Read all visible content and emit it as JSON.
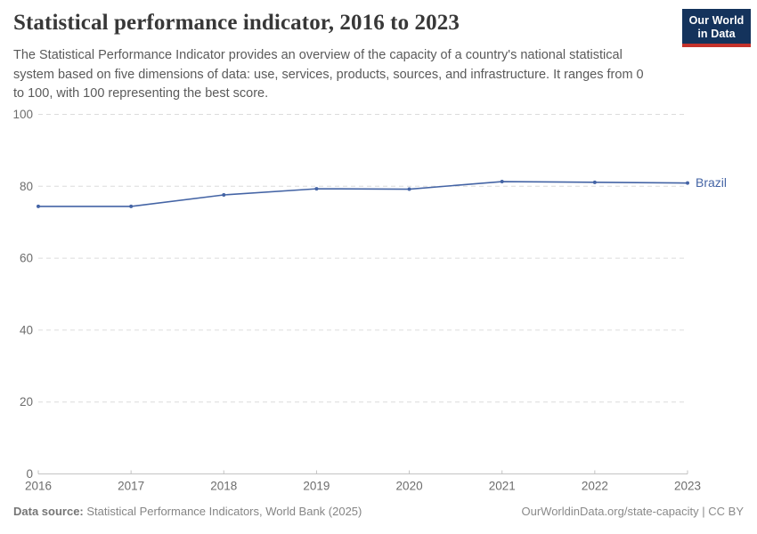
{
  "header": {
    "title": "Statistical performance indicator, 2016 to 2023",
    "subtitle": "The Statistical Performance Indicator provides an overview of the capacity of a country's national statistical system based on five dimensions of data: use, services, products, sources, and infrastructure. It ranges from 0 to 100, with 100 representing the best score.",
    "logo": {
      "line1": "Our World",
      "line2": "in Data",
      "bg_color": "#14335c",
      "bar_color": "#c4322b"
    }
  },
  "chart_data": {
    "type": "line",
    "title": "Statistical performance indicator, 2016 to 2023",
    "x": [
      2016,
      2017,
      2018,
      2019,
      2020,
      2021,
      2022,
      2023
    ],
    "series": [
      {
        "name": "Brazil",
        "values": [
          74.4,
          74.4,
          77.6,
          79.3,
          79.2,
          81.3,
          81.1,
          80.9
        ],
        "color": "#4464A5"
      }
    ],
    "xlabel": "",
    "ylabel": "",
    "ylim": [
      0,
      100
    ],
    "yticks": [
      0,
      20,
      40,
      60,
      80,
      100
    ],
    "grid": "horizontal-dashed",
    "legend": "line-end-label",
    "grid_color": "#dcdcdc",
    "axis_color": "#c3c3c3",
    "tick_label_color": "#6d6d6d"
  },
  "footer": {
    "source_label": "Data source:",
    "source_text": " Statistical Performance Indicators, World Bank (2025)",
    "right_text": "OurWorldinData.org/state-capacity | CC BY"
  }
}
